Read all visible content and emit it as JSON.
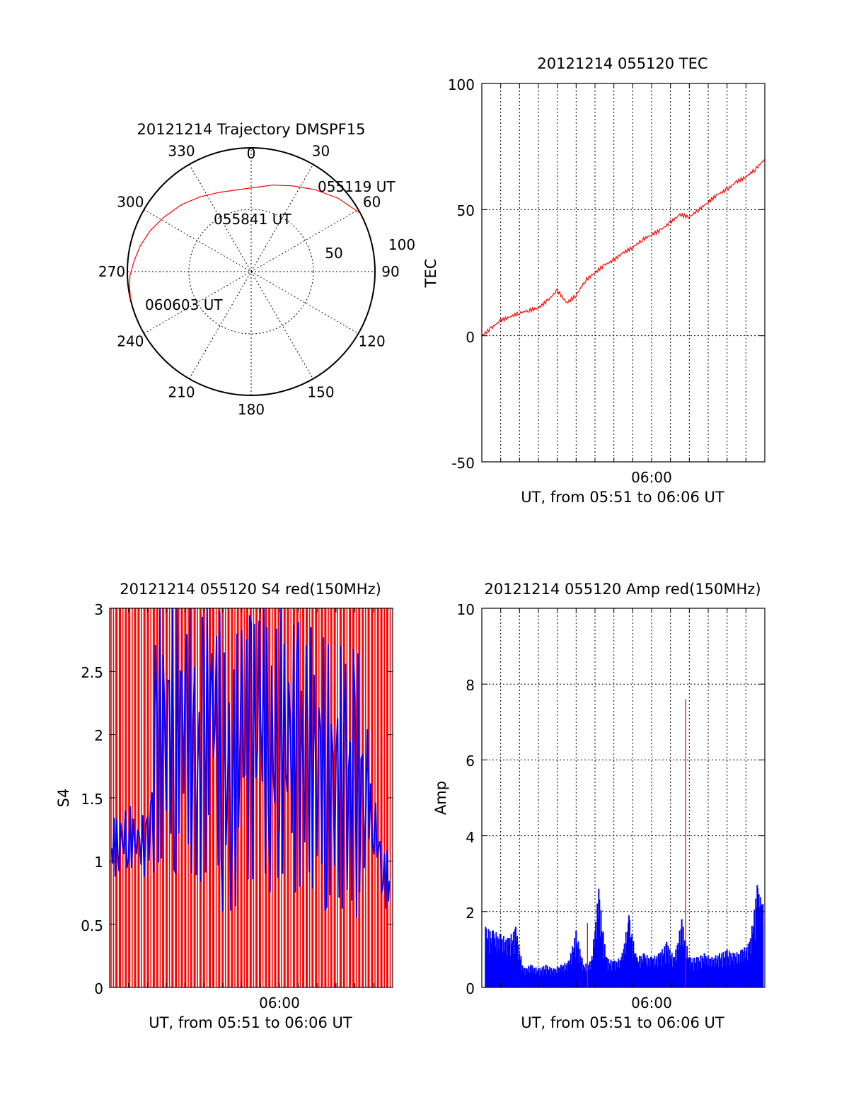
{
  "colors": {
    "red": "#ff0000",
    "blue": "#0000ff",
    "axes": "#000000"
  },
  "chart_data": [
    {
      "type": "polar",
      "title": "20121214 Trajectory DMSPF15",
      "angle_ticks": [
        "0",
        "30",
        "60",
        "90",
        "120",
        "150",
        "180",
        "210",
        "240",
        "270",
        "300",
        "330"
      ],
      "radial_ticks": [
        "50",
        "100"
      ],
      "rlim": [
        0,
        100
      ],
      "annotations": [
        "055119 UT",
        "055841 UT",
        "060603 UT"
      ],
      "track": {
        "azimuth_deg": [
          62,
          50,
          38,
          26,
          14,
          2,
          350,
          338,
          326,
          314,
          302,
          292,
          283,
          275,
          268,
          262,
          257
        ],
        "radius": [
          100,
          92,
          84,
          77,
          72,
          68,
          67,
          69,
          73,
          78,
          83,
          88,
          92,
          95,
          98,
          99,
          100
        ]
      }
    },
    {
      "type": "line",
      "title": "20121214 055120 TEC",
      "xlabel": "UT, from 05:51 to 06:06 UT",
      "ylabel": "TEC",
      "x_tick_label": "06:00",
      "xlim_minutes": [
        0,
        15
      ],
      "ylim": [
        -50,
        100
      ],
      "y_ticks": [
        "-50",
        "0",
        "50",
        "100"
      ],
      "series": [
        {
          "color": "#ff0000",
          "x_minutes": [
            0,
            0.5,
            1,
            1.5,
            2,
            2.5,
            3,
            3.5,
            4,
            4.5,
            5,
            5.5,
            6,
            6.5,
            7,
            7.5,
            8,
            8.5,
            9,
            9.5,
            10,
            10.5,
            11,
            11.5,
            12,
            12.5,
            13,
            13.5,
            14,
            14.5,
            15
          ],
          "values": [
            0,
            3,
            6,
            7.5,
            9,
            10,
            11,
            14,
            18,
            13,
            16,
            22,
            25,
            28,
            30,
            33,
            35,
            38,
            40,
            42,
            45,
            48,
            47,
            50,
            53,
            56,
            58,
            61,
            63,
            66,
            70
          ]
        }
      ]
    },
    {
      "type": "bar",
      "title": "20121214 055120 S4 red(150MHz)",
      "xlabel": "UT, from 05:51 to 06:06 UT",
      "ylabel": "S4",
      "x_tick_label": "06:00",
      "xlim_minutes": [
        0,
        15
      ],
      "ylim": [
        0,
        3
      ],
      "y_ticks": [
        "0",
        "0.5",
        "1",
        "1.5",
        "2",
        "2.5",
        "3"
      ],
      "series": [
        {
          "color": "#0000ff",
          "x_minutes": [
            0.1,
            0.5,
            1.0,
            1.5,
            2.0,
            2.5,
            3.0,
            3.5,
            4.0,
            4.5,
            5.0,
            5.5,
            6.0,
            6.5,
            7.0,
            7.5,
            8.0,
            8.5,
            9.0,
            9.5,
            10.0,
            10.5,
            11.0,
            11.5,
            12.0,
            12.5,
            13.0,
            13.5,
            14.0,
            14.5,
            14.9
          ],
          "values": [
            1.1,
            1.15,
            1.2,
            1.15,
            1.1,
            1.8,
            2.2,
            1.9,
            2.4,
            1.5,
            1.9,
            2.3,
            1.7,
            1.6,
            2.0,
            1.9,
            2.2,
            1.8,
            2.0,
            1.9,
            1.8,
            1.7,
            1.9,
            1.6,
            1.7,
            1.5,
            1.6,
            1.5,
            1.3,
            0.9,
            0.8
          ]
        }
      ]
    },
    {
      "type": "bar",
      "title": "20121214 055120 Amp red(150MHz)",
      "xlabel": "UT, from 05:51 to 06:06 UT",
      "ylabel": "Amp",
      "x_tick_label": "06:00",
      "xlim_minutes": [
        0,
        15
      ],
      "ylim": [
        0,
        10
      ],
      "y_ticks": [
        "0",
        "2",
        "4",
        "6",
        "8",
        "10"
      ],
      "series": [
        {
          "color": "#0000ff",
          "x_minutes": [
            0.2,
            0.6,
            1.0,
            1.4,
            1.8,
            2.2,
            2.6,
            3.0,
            3.4,
            3.8,
            4.2,
            4.6,
            5.0,
            5.4,
            5.8,
            6.2,
            6.6,
            7.0,
            7.4,
            7.8,
            8.2,
            8.6,
            9.0,
            9.4,
            9.8,
            10.2,
            10.6,
            11.0,
            11.4,
            11.8,
            12.2,
            12.6,
            13.0,
            13.4,
            13.8,
            14.2,
            14.6,
            14.9
          ],
          "values": [
            1.6,
            1.5,
            1.4,
            1.3,
            1.6,
            0.5,
            0.6,
            0.5,
            0.6,
            0.5,
            0.6,
            0.7,
            1.5,
            0.6,
            0.7,
            2.6,
            0.8,
            0.7,
            0.8,
            1.9,
            0.8,
            0.9,
            0.8,
            0.9,
            1.2,
            0.8,
            1.8,
            0.8,
            0.8,
            0.9,
            0.8,
            0.9,
            1.0,
            0.9,
            1.0,
            1.2,
            2.7,
            2.2
          ]
        },
        {
          "color": "#ff0000",
          "x_minutes": [
            5.6,
            10.8
          ],
          "values": [
            1.7,
            7.6
          ]
        }
      ]
    }
  ]
}
